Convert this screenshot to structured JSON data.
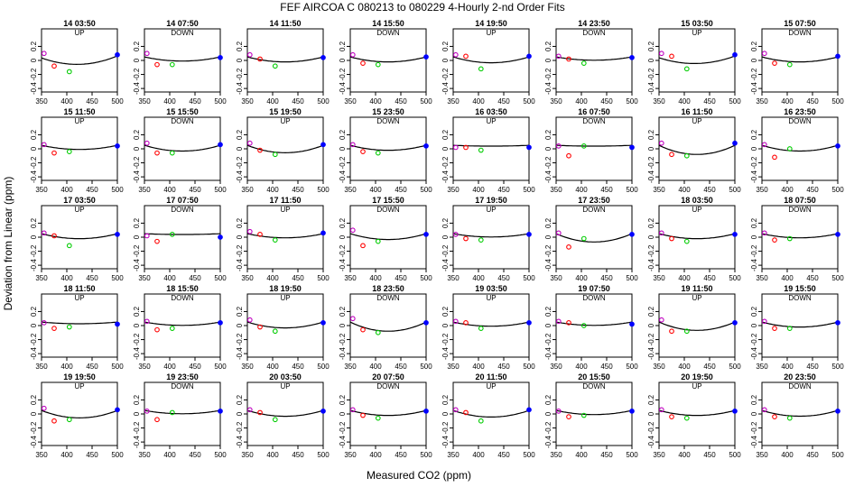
{
  "chart_data": {
    "type": "scatter",
    "title": "FEF   AIRCOA C   080213 to 080229  4-Hourly 2-nd Order Fits",
    "xlabel": "Measured CO2 (ppm)",
    "ylabel": "Deviation from Linear (ppm)",
    "xlim": [
      350,
      500
    ],
    "ylim": [
      -0.45,
      0.45
    ],
    "x_ticks": [
      350,
      400,
      450,
      500
    ],
    "y_ticks": [
      -0.4,
      -0.2,
      0.0,
      0.2
    ],
    "y_tick_labels": [
      "-0.4",
      "-0.2",
      "0",
      "0.2"
    ],
    "grid": false,
    "standard_x": [
      355,
      375,
      405,
      500
    ],
    "colors": {
      "curve": "#000000",
      "points": [
        "#c000c0",
        "#ff0000",
        "#00cc00",
        "#0000ff"
      ]
    },
    "panels": [
      {
        "time": "14 03:50",
        "dir": "UP",
        "a": 0.106,
        "xv": 420,
        "pts": [
          0.1,
          -0.08,
          -0.16,
          0.08
        ]
      },
      {
        "time": "14 07:50",
        "dir": "DOWN",
        "a": 0.059,
        "xv": 425,
        "pts": [
          0.1,
          -0.06,
          -0.06,
          0.04
        ]
      },
      {
        "time": "14 11:50",
        "dir": "",
        "a": 0.071,
        "xv": 425,
        "pts": [
          0.08,
          0.02,
          -0.08,
          0.04
        ]
      },
      {
        "time": "14 15:50",
        "dir": "DOWN",
        "a": 0.071,
        "xv": 425,
        "pts": [
          0.08,
          -0.04,
          -0.06,
          0.05
        ]
      },
      {
        "time": "14 19:50",
        "dir": "UP",
        "a": 0.083,
        "xv": 425,
        "pts": [
          0.08,
          0.06,
          -0.12,
          0.06
        ]
      },
      {
        "time": "14 23:50",
        "dir": "DOWN",
        "a": 0.047,
        "xv": 425,
        "pts": [
          0.06,
          0.02,
          -0.04,
          0.04
        ]
      },
      {
        "time": "15 03:50",
        "dir": "UP",
        "a": 0.094,
        "xv": 420,
        "pts": [
          0.1,
          0.06,
          -0.12,
          0.08
        ]
      },
      {
        "time": "15 07:50",
        "dir": "DOWN",
        "a": 0.071,
        "xv": 425,
        "pts": [
          0.1,
          -0.04,
          -0.06,
          0.06
        ]
      },
      {
        "time": "15 11:50",
        "dir": "UP",
        "a": 0.059,
        "xv": 425,
        "pts": [
          0.06,
          -0.06,
          -0.04,
          0.04
        ]
      },
      {
        "time": "15 15:50",
        "dir": "DOWN",
        "a": 0.082,
        "xv": 425,
        "pts": [
          0.08,
          -0.06,
          -0.06,
          0.06
        ]
      },
      {
        "time": "15 19:50",
        "dir": "UP",
        "a": 0.106,
        "xv": 425,
        "pts": [
          0.08,
          -0.02,
          -0.08,
          0.06
        ]
      },
      {
        "time": "15 23:50",
        "dir": "DOWN",
        "a": 0.071,
        "xv": 425,
        "pts": [
          0.06,
          -0.04,
          -0.06,
          0.04
        ]
      },
      {
        "time": "16 03:50",
        "dir": "UP",
        "a": 0.012,
        "xv": 425,
        "pts": [
          0.02,
          0.02,
          -0.02,
          0.02
        ]
      },
      {
        "time": "16 07:50",
        "dir": "DOWN",
        "a": 0.012,
        "xv": 425,
        "pts": [
          0.04,
          -0.1,
          0.04,
          0.02
        ]
      },
      {
        "time": "16 11:50",
        "dir": "UP",
        "a": 0.13,
        "xv": 425,
        "pts": [
          0.08,
          -0.08,
          -0.1,
          0.08
        ]
      },
      {
        "time": "16 23:50",
        "dir": "DOWN",
        "a": 0.082,
        "xv": 425,
        "pts": [
          0.06,
          -0.12,
          0.0,
          0.04
        ]
      },
      {
        "time": "17 03:50",
        "dir": "UP",
        "a": 0.071,
        "xv": 425,
        "pts": [
          0.06,
          0.02,
          -0.12,
          0.04
        ]
      },
      {
        "time": "17 07:50",
        "dir": "DOWN",
        "a": 0.012,
        "xv": 425,
        "pts": [
          0.02,
          -0.06,
          0.04,
          0.0
        ]
      },
      {
        "time": "17 11:50",
        "dir": "UP",
        "a": 0.059,
        "xv": 425,
        "pts": [
          0.08,
          0.04,
          -0.04,
          0.06
        ]
      },
      {
        "time": "17 15:50",
        "dir": "DOWN",
        "a": 0.083,
        "xv": 425,
        "pts": [
          0.1,
          -0.12,
          -0.06,
          0.04
        ]
      },
      {
        "time": "17 19:50",
        "dir": "UP",
        "a": 0.047,
        "xv": 425,
        "pts": [
          0.04,
          -0.02,
          -0.04,
          0.04
        ]
      },
      {
        "time": "17 23:50",
        "dir": "DOWN",
        "a": 0.118,
        "xv": 425,
        "pts": [
          0.06,
          -0.14,
          -0.02,
          0.04
        ]
      },
      {
        "time": "18 03:50",
        "dir": "UP",
        "a": 0.071,
        "xv": 425,
        "pts": [
          0.06,
          -0.02,
          -0.06,
          0.04
        ]
      },
      {
        "time": "18 07:50",
        "dir": "DOWN",
        "a": 0.059,
        "xv": 425,
        "pts": [
          0.06,
          -0.04,
          -0.02,
          0.04
        ]
      },
      {
        "time": "18 11:50",
        "dir": "UP",
        "a": 0.024,
        "xv": 425,
        "pts": [
          0.04,
          -0.04,
          -0.02,
          0.02
        ]
      },
      {
        "time": "18 15:50",
        "dir": "DOWN",
        "a": 0.047,
        "xv": 425,
        "pts": [
          0.06,
          -0.06,
          -0.04,
          0.04
        ]
      },
      {
        "time": "18 19:50",
        "dir": "UP",
        "a": 0.083,
        "xv": 425,
        "pts": [
          0.08,
          -0.02,
          -0.08,
          0.04
        ]
      },
      {
        "time": "18 23:50",
        "dir": "DOWN",
        "a": 0.13,
        "xv": 425,
        "pts": [
          0.1,
          -0.06,
          -0.1,
          0.04
        ]
      },
      {
        "time": "19 03:50",
        "dir": "UP",
        "a": 0.059,
        "xv": 425,
        "pts": [
          0.06,
          0.04,
          -0.04,
          0.04
        ]
      },
      {
        "time": "19 07:50",
        "dir": "DOWN",
        "a": 0.047,
        "xv": 425,
        "pts": [
          0.06,
          0.04,
          0.0,
          0.02
        ]
      },
      {
        "time": "19 11:50",
        "dir": "UP",
        "a": 0.118,
        "xv": 425,
        "pts": [
          0.08,
          -0.08,
          -0.08,
          0.04
        ]
      },
      {
        "time": "19 15:50",
        "dir": "DOWN",
        "a": 0.071,
        "xv": 425,
        "pts": [
          0.06,
          -0.04,
          -0.04,
          0.04
        ]
      },
      {
        "time": "19 19:50",
        "dir": "UP",
        "a": 0.106,
        "xv": 425,
        "pts": [
          0.08,
          -0.1,
          -0.08,
          0.06
        ]
      },
      {
        "time": "19 23:50",
        "dir": "DOWN",
        "a": 0.047,
        "xv": 425,
        "pts": [
          0.04,
          -0.08,
          0.02,
          0.04
        ]
      },
      {
        "time": "20 03:50",
        "dir": "UP",
        "a": 0.083,
        "xv": 425,
        "pts": [
          0.06,
          0.02,
          -0.08,
          0.04
        ]
      },
      {
        "time": "20 07:50",
        "dir": "DOWN",
        "a": 0.071,
        "xv": 425,
        "pts": [
          0.06,
          -0.02,
          -0.06,
          0.04
        ]
      },
      {
        "time": "20 11:50",
        "dir": "UP",
        "a": 0.094,
        "xv": 425,
        "pts": [
          0.06,
          0.02,
          -0.1,
          0.06
        ]
      },
      {
        "time": "20 15:50",
        "dir": "DOWN",
        "a": 0.059,
        "xv": 425,
        "pts": [
          0.04,
          -0.04,
          -0.02,
          0.04
        ]
      },
      {
        "time": "20 19:50",
        "dir": "UP",
        "a": 0.071,
        "xv": 425,
        "pts": [
          0.06,
          -0.04,
          -0.06,
          0.04
        ]
      },
      {
        "time": "20 23:50",
        "dir": "DOWN",
        "a": 0.082,
        "xv": 425,
        "pts": [
          0.06,
          -0.04,
          -0.06,
          0.04
        ]
      }
    ]
  }
}
